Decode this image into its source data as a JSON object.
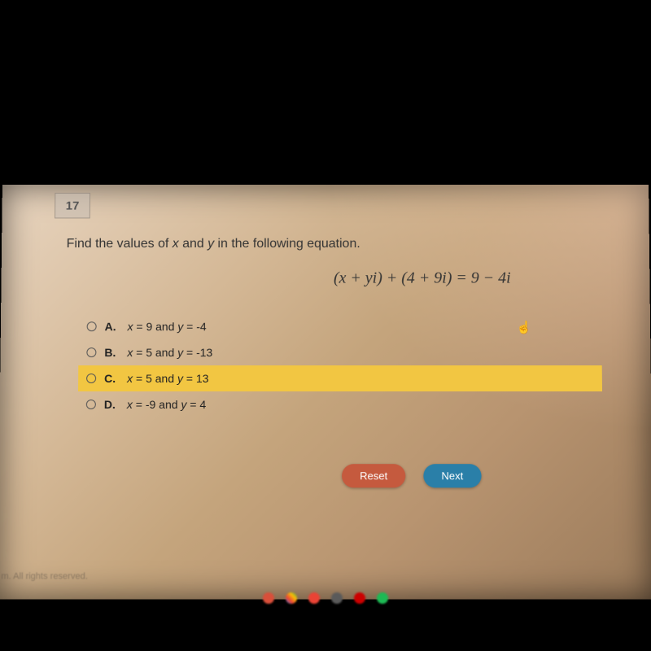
{
  "tab_number": "17",
  "question_pre": "Find the values of ",
  "question_var1": "x",
  "question_mid": " and ",
  "question_var2": "y",
  "question_post": " in the following equation.",
  "equation": "(x + yi) + (4 + 9i) = 9 − 4i",
  "options": {
    "a": {
      "label": "A.",
      "text_var1": "x",
      "text_mid1": " = 9 and ",
      "text_var2": "y",
      "text_mid2": " = -4"
    },
    "b": {
      "label": "B.",
      "text_var1": "x",
      "text_mid1": " = 5 and ",
      "text_var2": "y",
      "text_mid2": " = -13"
    },
    "c": {
      "label": "C.",
      "text_var1": "x",
      "text_mid1": " = 5 and ",
      "text_var2": "y",
      "text_mid2": " = 13"
    },
    "d": {
      "label": "D.",
      "text_var1": "x",
      "text_mid1": " = -9 and ",
      "text_var2": "y",
      "text_mid2": " = 4"
    }
  },
  "highlighted": "c",
  "buttons": {
    "reset": "Reset",
    "next": "Next"
  },
  "footer": "m. All rights reserved.",
  "colors": {
    "highlight": "#f2c642",
    "reset_btn": "#c55a3e",
    "next_btn": "#2a7fa8"
  },
  "taskbar_icons": [
    "#d94f3a",
    "#4285f4",
    "#ea4335",
    "#34a853",
    "#cc0000",
    "#1db954"
  ]
}
